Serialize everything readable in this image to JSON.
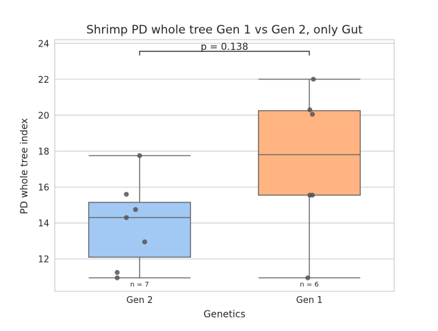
{
  "chart_data": {
    "type": "box",
    "title": "Shrimp PD whole tree Gen 1 vs Gen 2, only Gut",
    "xlabel": "Genetics",
    "ylabel": "PD whole tree index",
    "ylim": [
      10.2,
      24.2
    ],
    "yticks": [
      12,
      14,
      16,
      18,
      20,
      22,
      24
    ],
    "ytick_labels": [
      "12",
      "14",
      "16",
      "18",
      "20",
      "22",
      "24"
    ],
    "grid": true,
    "categories": [
      "Gen 2",
      "Gen 1"
    ],
    "boxes": [
      {
        "category": "Gen 2",
        "color": "#a1c9f4",
        "whisker_low": 10.95,
        "q1": 12.1,
        "median": 14.3,
        "q3": 15.15,
        "whisker_high": 17.75,
        "points": [
          17.75,
          15.6,
          14.75,
          14.3,
          12.95,
          11.25,
          10.95
        ],
        "count_label": "n = 7"
      },
      {
        "category": "Gen 1",
        "color": "#ffb482",
        "whisker_low": 10.95,
        "q1": 15.55,
        "median": 17.8,
        "q3": 20.25,
        "whisker_high": 22.0,
        "points": [
          22.0,
          20.3,
          20.05,
          15.55,
          15.55,
          10.95
        ],
        "count_label": "n = 6"
      }
    ],
    "annotation": {
      "text": "p = 0.138",
      "y": 23.55
    }
  }
}
